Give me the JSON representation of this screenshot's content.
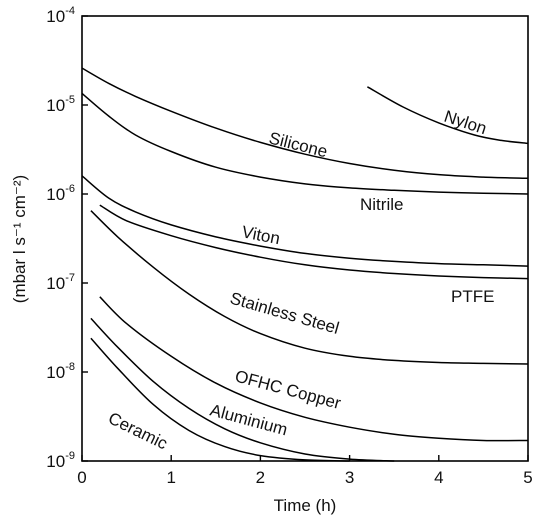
{
  "chart_data": {
    "type": "line",
    "xlabel": "Time (h)",
    "ylabel": "(mbar l s⁻¹ cm⁻²)",
    "xlim": [
      0,
      5
    ],
    "ylim": [
      1e-09,
      0.0001
    ],
    "yscale": "log",
    "grid": false,
    "x_ticks": [
      "0",
      "1",
      "2",
      "3",
      "4",
      "5"
    ],
    "y_ticks": [
      {
        "base": "10",
        "exp": "-9"
      },
      {
        "base": "10",
        "exp": "-8"
      },
      {
        "base": "10",
        "exp": "-7"
      },
      {
        "base": "10",
        "exp": "-6"
      },
      {
        "base": "10",
        "exp": "-5"
      },
      {
        "base": "10",
        "exp": "-4"
      }
    ],
    "series": [
      {
        "name": "Nylon",
        "x": [
          3.2,
          3.6,
          4.0,
          4.4,
          4.7,
          5.0
        ],
        "y": [
          1.6e-05,
          9.5e-06,
          6.3e-06,
          4.6e-06,
          4e-06,
          3.7e-06
        ]
      },
      {
        "name": "Silicone",
        "x": [
          0,
          0.3,
          0.6,
          1,
          1.5,
          2,
          2.5,
          3,
          3.5,
          4,
          4.5,
          5
        ],
        "y": [
          2.6e-05,
          1.75e-05,
          1.25e-05,
          8.5e-06,
          5.5e-06,
          3.8e-06,
          2.8e-06,
          2.2e-06,
          1.85e-06,
          1.65e-06,
          1.55e-06,
          1.5e-06
        ]
      },
      {
        "name": "Nitrile",
        "x": [
          0,
          0.3,
          0.6,
          1,
          1.5,
          2,
          2.5,
          3,
          3.5,
          4,
          4.5,
          5
        ],
        "y": [
          1.35e-05,
          7.5e-06,
          4.6e-06,
          3e-06,
          2e-06,
          1.55e-06,
          1.3e-06,
          1.17e-06,
          1.1e-06,
          1.05e-06,
          1.02e-06,
          1e-06
        ]
      },
      {
        "name": "Viton",
        "x": [
          0,
          0.3,
          0.6,
          1,
          1.5,
          2,
          2.5,
          3,
          3.5,
          4,
          4.5,
          5
        ],
        "y": [
          1.6e-06,
          9e-07,
          6.3e-07,
          4.5e-07,
          3.3e-07,
          2.6e-07,
          2.15e-07,
          1.9e-07,
          1.75e-07,
          1.65e-07,
          1.6e-07,
          1.55e-07
        ]
      },
      {
        "name": "PTFE",
        "x": [
          0.2,
          0.5,
          1,
          1.5,
          2,
          2.5,
          3,
          3.5,
          4,
          4.5,
          5
        ],
        "y": [
          7.5e-07,
          5e-07,
          3.4e-07,
          2.5e-07,
          1.95e-07,
          1.6e-07,
          1.4e-07,
          1.28e-07,
          1.2e-07,
          1.15e-07,
          1.12e-07
        ]
      },
      {
        "name": "Stainless Steel",
        "x": [
          0.1,
          0.4,
          0.8,
          1.2,
          1.6,
          2,
          2.5,
          3,
          3.5,
          4,
          4.5,
          5
        ],
        "y": [
          6.5e-07,
          3.3e-07,
          1.5e-07,
          7.5e-08,
          4.2e-08,
          2.7e-08,
          1.85e-08,
          1.5e-08,
          1.35e-08,
          1.28e-08,
          1.25e-08,
          1.23e-08
        ]
      },
      {
        "name": "OFHC Copper",
        "x": [
          0.2,
          0.5,
          1,
          1.5,
          2,
          2.5,
          3,
          3.5,
          4,
          4.5,
          5
        ],
        "y": [
          7e-08,
          3.5e-08,
          1.5e-08,
          7.5e-09,
          4.5e-09,
          3.1e-09,
          2.4e-09,
          2e-09,
          1.8e-09,
          1.7e-09,
          1.7e-09
        ]
      },
      {
        "name": "Aluminium",
        "x": [
          0.1,
          0.4,
          0.8,
          1.2,
          1.6,
          2,
          2.5,
          3,
          3.5
        ],
        "y": [
          4e-08,
          1.9e-08,
          7.8e-09,
          3.9e-09,
          2.3e-09,
          1.6e-09,
          1.2e-09,
          1.05e-09,
          1e-09
        ]
      },
      {
        "name": "Ceramic",
        "x": [
          0.1,
          0.4,
          0.8,
          1.2,
          1.6,
          2,
          2.5,
          3
        ],
        "y": [
          2.4e-08,
          1.1e-08,
          4.3e-09,
          2.2e-09,
          1.45e-09,
          1.15e-09,
          1.03e-09,
          1e-09
        ]
      }
    ]
  }
}
